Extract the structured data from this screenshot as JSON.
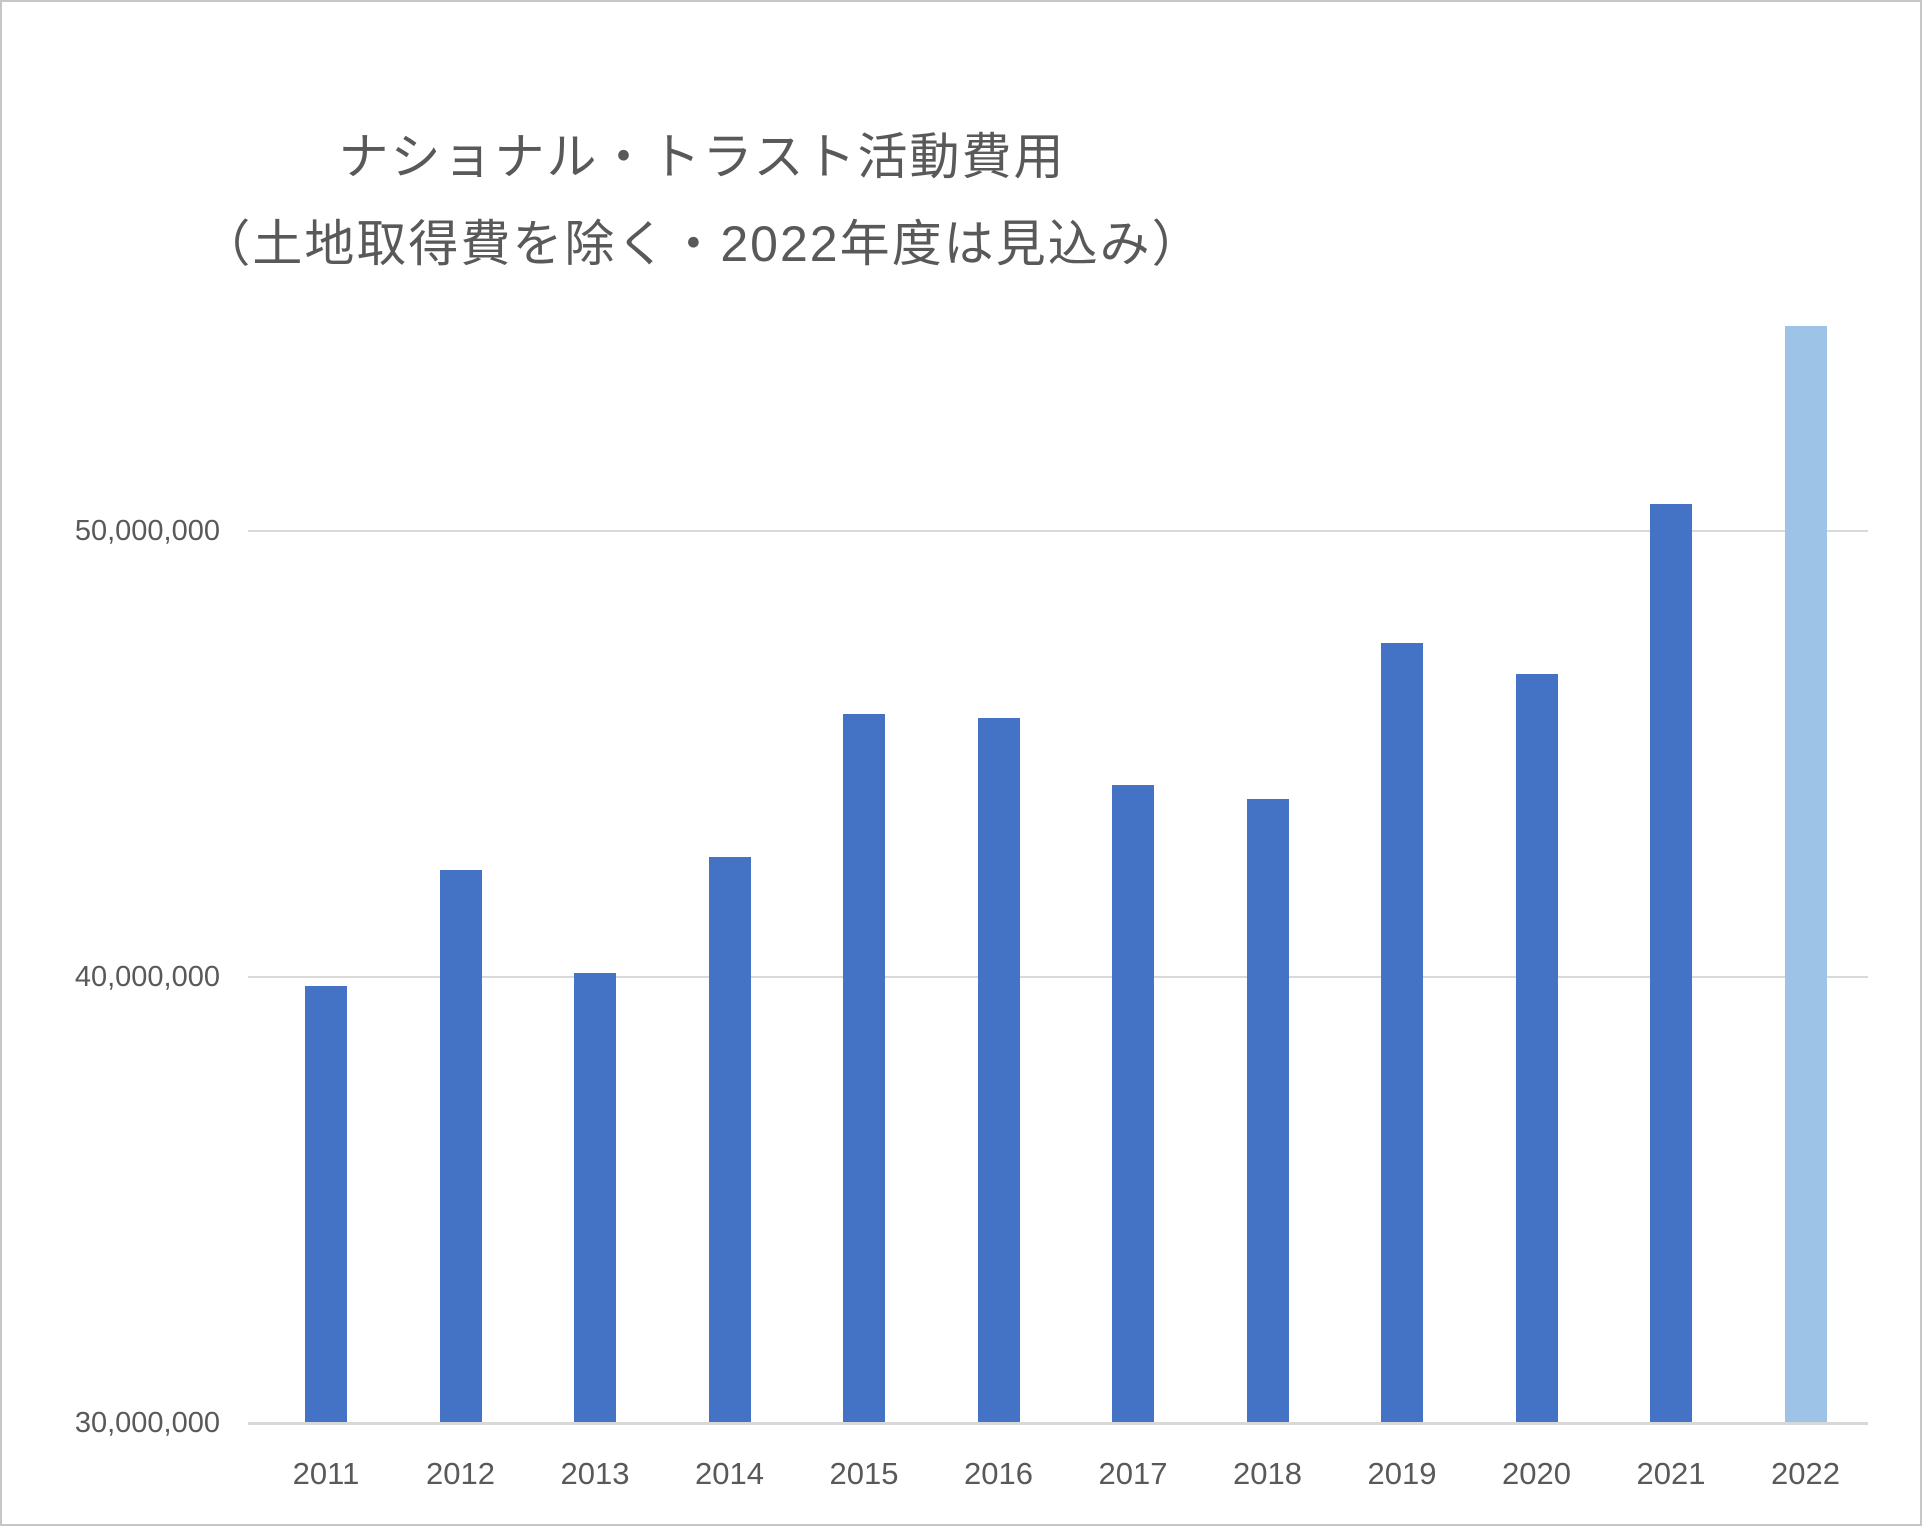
{
  "title": {
    "line1": "ナショナル・トラスト活動費用",
    "line2": "（土地取得費を除く・2022年度は見込み）"
  },
  "chart_data": {
    "type": "bar",
    "title": "ナショナル・トラスト活動費用（土地取得費を除く・2022年度は見込み）",
    "categories": [
      "2011",
      "2012",
      "2013",
      "2014",
      "2015",
      "2016",
      "2017",
      "2018",
      "2019",
      "2020",
      "2021",
      "2022"
    ],
    "values": [
      39800000,
      42400000,
      40100000,
      42700000,
      45900000,
      45800000,
      44300000,
      44000000,
      47500000,
      46800000,
      50600000,
      54600000
    ],
    "highlighted_category": "2022",
    "yticks": [
      {
        "value": 30000000,
        "label": "30,000,000"
      },
      {
        "value": 40000000,
        "label": "40,000,000"
      },
      {
        "value": 50000000,
        "label": "50,000,000"
      }
    ],
    "ylim": [
      30000000,
      55000000
    ],
    "xlabel": "",
    "ylabel": "",
    "grid": "horizontal",
    "legend": "none"
  },
  "colors": {
    "bar_default": "#4472c4",
    "bar_forecast": "#9dc3e6",
    "gridline": "#d9d9d9",
    "axis_line": "#d8d8d8",
    "text": "#595959",
    "background": "#ffffff",
    "border": "#c6c6c6"
  }
}
